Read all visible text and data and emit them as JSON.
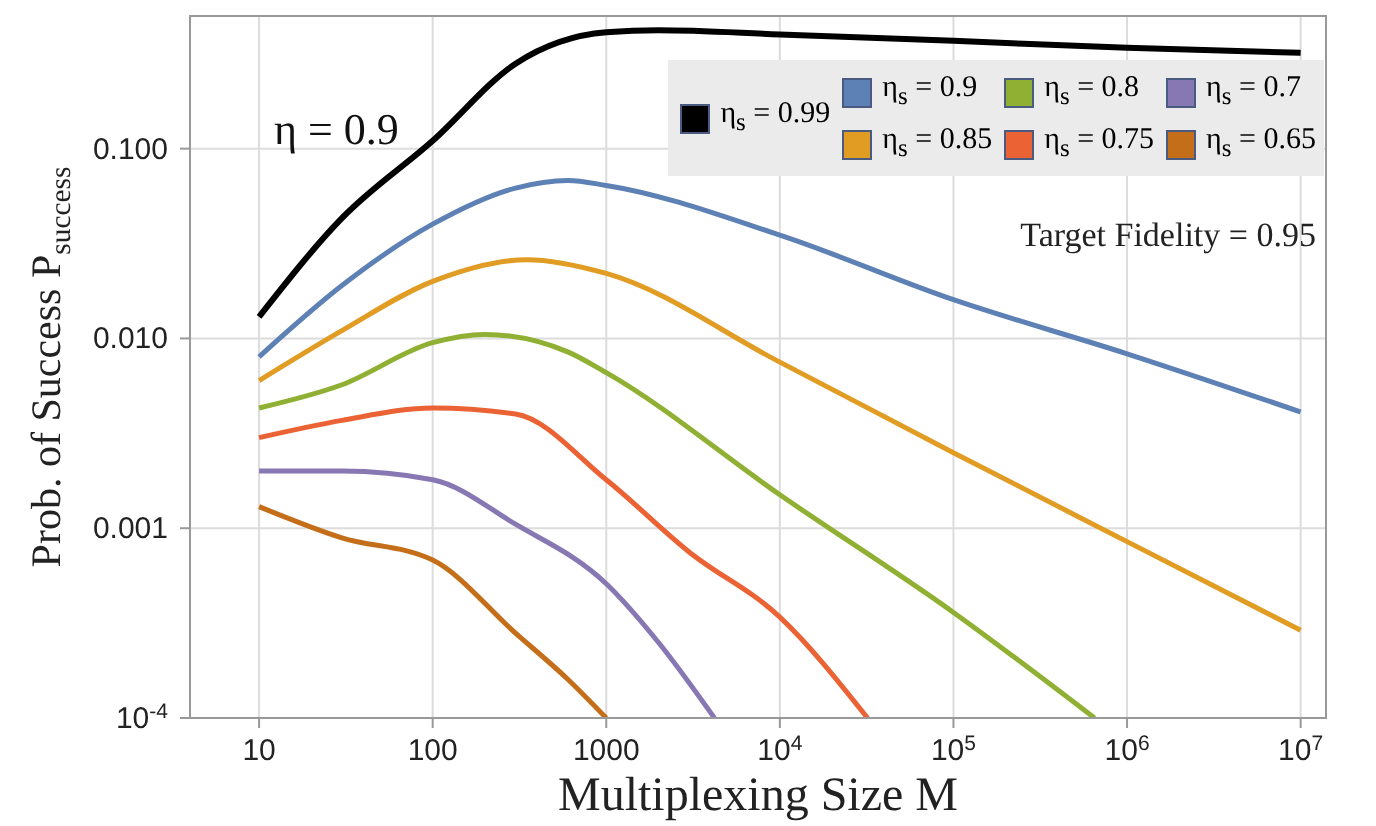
{
  "chart_data": {
    "type": "line",
    "xlabel": "Multiplexing Size M",
    "ylabel": "Prob. of Success P$_{success}$",
    "log": "xy",
    "grid": true,
    "legend": "top right",
    "line_style": "solid",
    "marker": "none",
    "xlim": [
      4,
      14000000
    ],
    "xticks": [
      10,
      100,
      1000,
      {
        "value": 10000,
        "label": "10$^{4}$"
      },
      {
        "value": 100000,
        "label": "10$^{5}$"
      },
      {
        "value": 1000000,
        "label": "10$^{6}$"
      },
      {
        "value": 10000000,
        "label": "10$^{7}$"
      }
    ],
    "ylim": [
      0.0001,
      0.5
    ],
    "yticks": [
      {
        "value": 0.0001,
        "label": "10$^{-4}$"
      },
      {
        "value": 0.001,
        "label": "0.001"
      },
      {
        "value": 0.01,
        "label": "0.010"
      },
      {
        "value": 0.1,
        "label": "0.100"
      }
    ],
    "annotations": [
      "η = 0.9",
      "Target Fidelity = 0.95"
    ],
    "series": [
      {
        "name": "η$_{s}$ = 0.99",
        "color": "#000000",
        "x": [
          10,
          30,
          100,
          300,
          1000,
          2000,
          10000,
          100000,
          1000000,
          10000000
        ],
        "values": [
          0.013,
          0.043,
          0.11,
          0.28,
          0.41,
          0.42,
          0.4,
          0.37,
          0.34,
          0.32
        ]
      },
      {
        "name": "η$_{s}$ = 0.9",
        "color": "#5e81b5",
        "x": [
          10,
          30,
          100,
          300,
          600,
          1000,
          10000,
          100000,
          1000000,
          10000000
        ],
        "values": [
          0.008,
          0.019,
          0.04,
          0.062,
          0.068,
          0.064,
          0.035,
          0.016,
          0.0083,
          0.0041
        ]
      },
      {
        "name": "η$_{s}$ = 0.85",
        "color": "#e19c24",
        "x": [
          10,
          30,
          100,
          350,
          1000,
          10000,
          100000,
          1000000,
          10000000
        ],
        "values": [
          0.006,
          0.011,
          0.02,
          0.026,
          0.022,
          0.0075,
          0.0025,
          0.00085,
          0.00029
        ]
      },
      {
        "name": "η$_{s}$ = 0.8",
        "color": "#8fb032",
        "x": [
          10,
          30,
          100,
          200,
          600,
          1000,
          10000,
          100000,
          650000
        ],
        "values": [
          0.0043,
          0.0057,
          0.0095,
          0.0105,
          0.0085,
          0.0066,
          0.0015,
          0.00036,
          0.0001
        ]
      },
      {
        "name": "η$_{s}$ = 0.75",
        "color": "#eb6235",
        "x": [
          10,
          30,
          100,
          300,
          1000,
          3000,
          10000,
          32000
        ],
        "values": [
          0.003,
          0.0037,
          0.0043,
          0.004,
          0.0018,
          0.00075,
          0.00034,
          0.0001
        ]
      },
      {
        "name": "η$_{s}$ = 0.7",
        "color": "#8778b3",
        "x": [
          10,
          30,
          100,
          300,
          1000,
          2000,
          4200
        ],
        "values": [
          0.002,
          0.002,
          0.0018,
          0.00105,
          0.00051,
          0.00025,
          0.0001
        ]
      },
      {
        "name": "η$_{s}$ = 0.65",
        "color": "#c56e1a",
        "x": [
          10,
          30,
          100,
          300,
          600,
          1000
        ],
        "values": [
          0.0013,
          0.00089,
          0.00068,
          0.00028,
          0.00016,
          0.0001
        ]
      }
    ]
  }
}
